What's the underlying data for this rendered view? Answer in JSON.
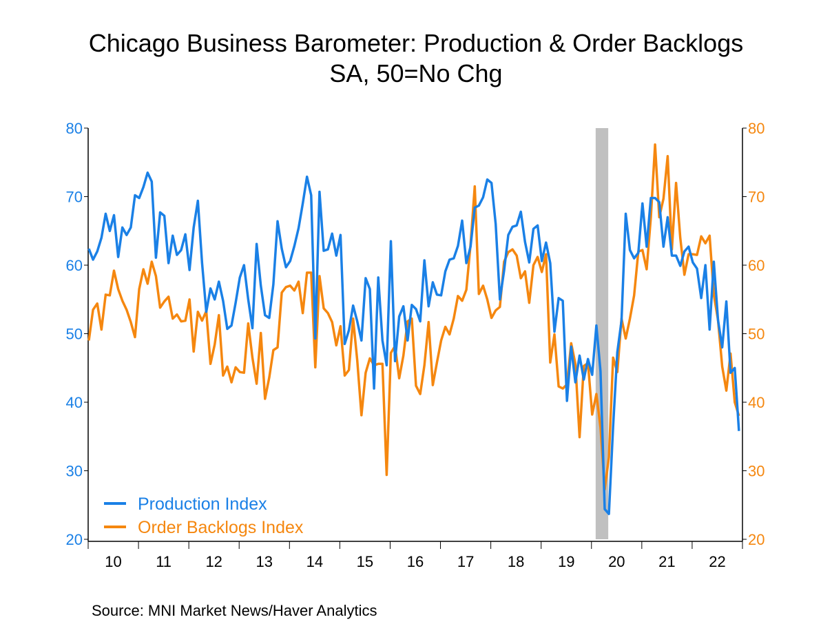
{
  "chart_data": {
    "type": "line",
    "title": "Chicago Business Barometer: Production & Order Backlogs",
    "subtitle": "SA, 50=No Chg",
    "source": "Source:  MNI Market News/Haver Analytics",
    "x_start": "2010-01",
    "x_end": "2022-12",
    "frequency": "monthly",
    "x_tick_labels": [
      "10",
      "11",
      "12",
      "13",
      "14",
      "15",
      "16",
      "17",
      "18",
      "19",
      "20",
      "21",
      "22"
    ],
    "ylim_left": [
      20,
      80
    ],
    "ylim_right": [
      20,
      80
    ],
    "y_ticks": [
      20,
      30,
      40,
      50,
      60,
      70,
      80
    ],
    "y_tick_labels": [
      "20",
      "30",
      "40",
      "50",
      "60",
      "70",
      "80"
    ],
    "grid": false,
    "legend_position": "bottom-left",
    "recession_shading": [
      "2020-02",
      "2020-04"
    ],
    "recession_color": "#c0c0c0",
    "series": [
      {
        "name": "Production Index",
        "axis": "left",
        "color": "#1a80e6",
        "values": [
          62.4,
          60.8,
          62,
          64,
          67.5,
          65,
          67.3,
          61.2,
          65.5,
          64.4,
          65.5,
          70.2,
          69.8,
          71.4,
          73.5,
          72.2,
          61.1,
          67.7,
          67.2,
          60.3,
          64.3,
          61.5,
          62.2,
          64.5,
          59.3,
          65.5,
          69.4,
          60.3,
          53.2,
          56.6,
          55,
          57.6,
          54.8,
          50.7,
          51.2,
          54.5,
          58.2,
          60,
          55,
          50.8,
          63.1,
          57,
          52.7,
          52.3,
          57.2,
          66.4,
          62.4,
          59.7,
          60.6,
          62.8,
          65.4,
          69,
          72.9,
          70.2,
          49.3,
          70.7,
          62.1,
          62.3,
          64.6,
          61.4,
          64.4,
          48.5,
          50.5,
          54.1,
          51.8,
          49,
          58.1,
          56.5,
          42,
          58.2,
          49,
          45.4,
          63.5,
          46,
          52.5,
          54,
          49,
          54.2,
          53.6,
          51.8,
          60.7,
          54,
          57.5,
          55.7,
          55.6,
          59.1,
          60.8,
          61,
          62.8,
          66.5,
          60.3,
          62.7,
          68.4,
          68.7,
          69.9,
          72.5,
          72,
          66,
          55,
          59.2,
          64.4,
          65.6,
          65.8,
          67.8,
          63.4,
          60.4,
          65.3,
          65.8,
          60.6,
          63.3,
          60.3,
          50.3,
          55.2,
          54.8,
          40.2,
          48.1,
          42.9,
          46.8,
          43.3,
          46.3,
          44,
          51.2,
          44.5,
          24.4,
          23.7,
          36.5,
          47.3,
          51.9,
          67.5,
          62.2,
          61,
          61.8,
          69,
          62.7,
          69.8,
          69.8,
          69.2,
          62.7,
          67,
          61.4,
          61.4,
          59.9,
          62,
          62.7,
          60.4,
          59.5,
          55.2,
          60,
          50.6,
          60.5,
          52,
          48,
          54.7,
          44.3,
          45,
          35.8
        ]
      },
      {
        "name": "Order Backlogs Index",
        "axis": "right",
        "color": "#f5870f",
        "values": [
          49,
          53.5,
          54.4,
          50.6,
          55.7,
          55.6,
          59.2,
          56.5,
          54.8,
          53.5,
          51.7,
          49.5,
          56.5,
          59.4,
          57.3,
          60.5,
          58.4,
          53.8,
          54.7,
          55.4,
          52.2,
          52.8,
          51.8,
          51.9,
          55,
          47.4,
          53.2,
          51.9,
          53.3,
          45.6,
          48.4,
          52.7,
          43.9,
          45.2,
          42.9,
          45.1,
          44.4,
          44.3,
          51.5,
          46.5,
          42.7,
          50.1,
          40.5,
          43.6,
          47.6,
          48,
          56,
          56.8,
          57,
          56.3,
          57.6,
          53,
          58.9,
          58.9,
          45.1,
          58.4,
          53.7,
          53,
          51.7,
          48.3,
          51.1,
          43.9,
          44.7,
          52.2,
          46.1,
          38.1,
          44.3,
          46.4,
          45.4,
          45.6,
          45.6,
          29.4,
          47.2,
          48.2,
          43.5,
          46.8,
          51.8,
          52.2,
          42.4,
          41.2,
          45.4,
          51.7,
          42.5,
          45.8,
          49,
          51,
          49.9,
          52.2,
          55.5,
          54.8,
          56.4,
          63,
          71.5,
          55.8,
          57,
          55,
          52.3,
          53.4,
          53.9,
          60.5,
          61.9,
          62.3,
          61.4,
          58.1,
          59.1,
          54.5,
          60,
          61.2,
          59,
          61.6,
          45.8,
          49.9,
          42.3,
          42,
          42.6,
          48.6,
          45.6,
          34.9,
          45.3,
          45.7,
          38.2,
          41.2,
          36.3,
          27.3,
          32,
          46.5,
          44.4,
          52.2,
          49.3,
          52.2,
          55.6,
          62,
          62.2,
          59.4,
          67,
          77.6,
          67,
          69.7,
          75.9,
          62.3,
          72,
          64,
          58.6,
          61.6,
          61.6,
          61.5,
          64.2,
          63.2,
          64.3,
          55.7,
          52,
          45.2,
          41.7,
          47.1,
          40,
          38
        ]
      }
    ]
  }
}
